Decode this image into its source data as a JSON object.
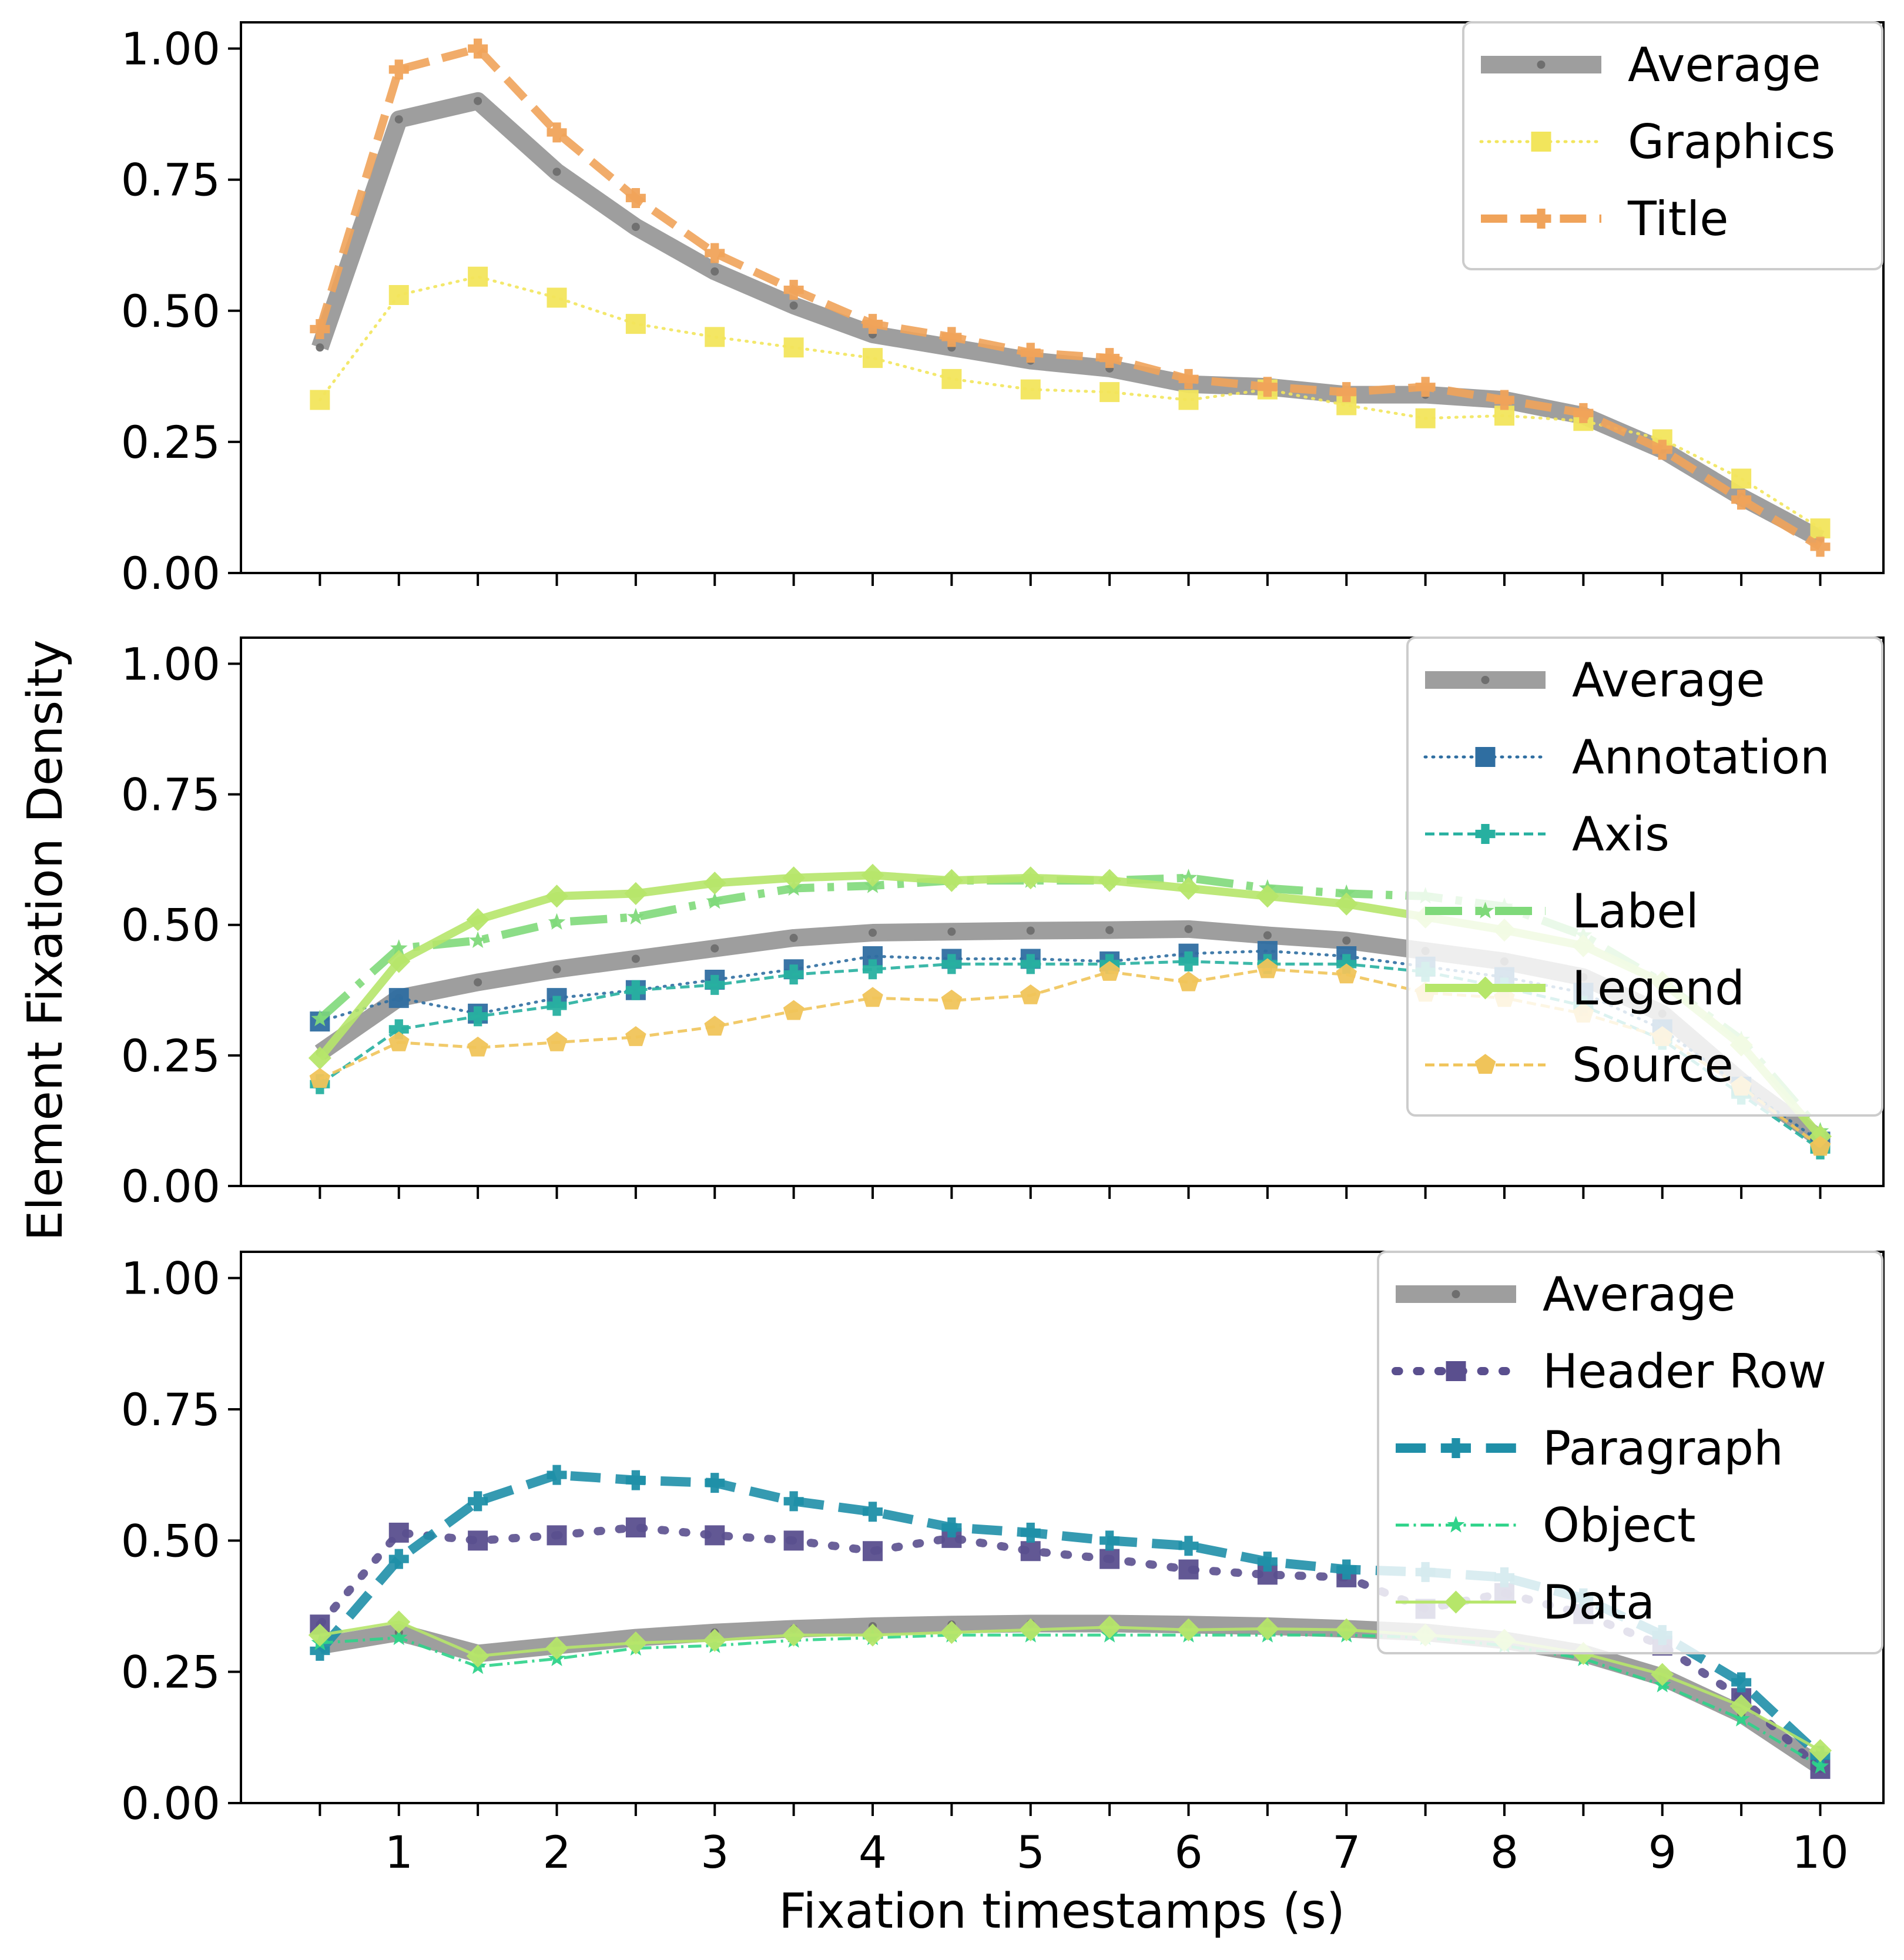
{
  "chart_data": {
    "type": "line",
    "ylabel": "Element Fixation Density",
    "xlabel": "Fixation timestamps (s)",
    "x": [
      0.5,
      1,
      1.5,
      2,
      2.5,
      3,
      3.5,
      4,
      4.5,
      5,
      5.5,
      6,
      6.5,
      7,
      7.5,
      8,
      8.5,
      9,
      9.5,
      10
    ],
    "xticks": [
      "1",
      "2",
      "3",
      "4",
      "5",
      "6",
      "7",
      "8",
      "9",
      "10"
    ],
    "ylim": [
      0,
      1.05
    ],
    "yticks": [
      "0.00",
      "0.25",
      "0.50",
      "0.75",
      "1.00"
    ],
    "legend_position": "top-right",
    "panels": [
      {
        "series": [
          {
            "name": "Average",
            "color": "#9e9e9e",
            "style": "solid",
            "marker": "circle",
            "width": "thick",
            "values": [
              0.43,
              0.865,
              0.9,
              0.765,
              0.66,
              0.575,
              0.51,
              0.455,
              0.43,
              0.405,
              0.39,
              0.36,
              0.355,
              0.34,
              0.34,
              0.33,
              0.3,
              0.235,
              0.145,
              0.065
            ]
          },
          {
            "name": "Graphics",
            "color": "#f2e55c",
            "style": "dotted",
            "marker": "square",
            "width": "thin",
            "values": [
              0.33,
              0.53,
              0.565,
              0.525,
              0.475,
              0.45,
              0.43,
              0.41,
              0.37,
              0.35,
              0.345,
              0.33,
              0.35,
              0.32,
              0.295,
              0.3,
              0.29,
              0.255,
              0.18,
              0.085
            ]
          },
          {
            "name": "Title",
            "color": "#f0a35a",
            "style": "dashed",
            "marker": "plus",
            "width": "medium",
            "values": [
              0.465,
              0.96,
              1.0,
              0.84,
              0.715,
              0.61,
              0.54,
              0.475,
              0.45,
              0.42,
              0.41,
              0.37,
              0.355,
              0.345,
              0.355,
              0.33,
              0.305,
              0.235,
              0.14,
              0.05
            ]
          }
        ]
      },
      {
        "series": [
          {
            "name": "Average",
            "color": "#9e9e9e",
            "style": "solid",
            "marker": "circle",
            "width": "thick",
            "values": [
              0.255,
              0.36,
              0.39,
              0.415,
              0.435,
              0.455,
              0.475,
              0.485,
              0.487,
              0.489,
              0.49,
              0.492,
              0.48,
              0.47,
              0.45,
              0.43,
              0.4,
              0.33,
              0.2,
              0.09
            ]
          },
          {
            "name": "Annotation",
            "color": "#2f6ea1",
            "style": "dotted",
            "marker": "square",
            "width": "thin",
            "values": [
              0.315,
              0.36,
              0.33,
              0.36,
              0.375,
              0.395,
              0.415,
              0.44,
              0.435,
              0.435,
              0.43,
              0.445,
              0.45,
              0.44,
              0.42,
              0.4,
              0.37,
              0.3,
              0.19,
              0.085
            ]
          },
          {
            "name": "Axis",
            "color": "#27b0a0",
            "style": "dashed",
            "marker": "plus",
            "width": "thin",
            "values": [
              0.195,
              0.3,
              0.325,
              0.345,
              0.375,
              0.385,
              0.405,
              0.415,
              0.425,
              0.425,
              0.425,
              0.43,
              0.425,
              0.425,
              0.41,
              0.38,
              0.345,
              0.28,
              0.175,
              0.07
            ]
          },
          {
            "name": "Label",
            "color": "#7fd97a",
            "style": "dashdot",
            "marker": "star",
            "width": "medium",
            "values": [
              0.32,
              0.455,
              0.47,
              0.505,
              0.515,
              0.545,
              0.57,
              0.575,
              0.585,
              0.585,
              0.585,
              0.59,
              0.57,
              0.56,
              0.555,
              0.535,
              0.48,
              0.39,
              0.28,
              0.105
            ]
          },
          {
            "name": "Legend",
            "color": "#b6e66a",
            "style": "solid",
            "marker": "diamond",
            "width": "medium",
            "values": [
              0.245,
              0.43,
              0.51,
              0.555,
              0.56,
              0.58,
              0.59,
              0.595,
              0.585,
              0.59,
              0.585,
              0.57,
              0.555,
              0.54,
              0.515,
              0.49,
              0.46,
              0.39,
              0.27,
              0.095
            ]
          },
          {
            "name": "Source",
            "color": "#f0c45a",
            "style": "dashed",
            "marker": "pentagon",
            "width": "thin",
            "values": [
              0.205,
              0.275,
              0.265,
              0.275,
              0.285,
              0.305,
              0.335,
              0.36,
              0.355,
              0.365,
              0.41,
              0.39,
              0.415,
              0.405,
              0.37,
              0.36,
              0.33,
              0.285,
              0.19,
              0.075
            ]
          }
        ]
      },
      {
        "series": [
          {
            "name": "Average",
            "color": "#9e9e9e",
            "style": "solid",
            "marker": "circle",
            "width": "thick",
            "values": [
              0.3,
              0.325,
              0.285,
              0.3,
              0.315,
              0.325,
              0.332,
              0.337,
              0.34,
              0.342,
              0.342,
              0.34,
              0.337,
              0.332,
              0.325,
              0.31,
              0.285,
              0.24,
              0.17,
              0.07
            ]
          },
          {
            "name": "Header Row",
            "color": "#5a4f8e",
            "style": "dotted",
            "marker": "square",
            "width": "medium",
            "values": [
              0.34,
              0.515,
              0.5,
              0.51,
              0.525,
              0.51,
              0.5,
              0.48,
              0.505,
              0.48,
              0.465,
              0.445,
              0.435,
              0.43,
              0.37,
              0.4,
              0.36,
              0.3,
              0.2,
              0.065
            ]
          },
          {
            "name": "Paragraph",
            "color": "#1f8fa8",
            "style": "dashed",
            "marker": "plus",
            "width": "thick-dashed",
            "values": [
              0.29,
              0.465,
              0.575,
              0.625,
              0.615,
              0.61,
              0.575,
              0.555,
              0.525,
              0.515,
              0.5,
              0.49,
              0.46,
              0.445,
              0.44,
              0.43,
              0.39,
              0.32,
              0.23,
              0.09
            ]
          },
          {
            "name": "Object",
            "color": "#2ed389",
            "style": "dashdot",
            "marker": "star",
            "width": "thin",
            "values": [
              0.305,
              0.315,
              0.26,
              0.275,
              0.295,
              0.3,
              0.31,
              0.315,
              0.32,
              0.32,
              0.32,
              0.32,
              0.32,
              0.32,
              0.315,
              0.3,
              0.275,
              0.225,
              0.16,
              0.07
            ]
          },
          {
            "name": "Data",
            "color": "#b6e66a",
            "style": "solid",
            "marker": "diamond",
            "width": "thin",
            "values": [
              0.32,
              0.345,
              0.28,
              0.295,
              0.305,
              0.31,
              0.32,
              0.32,
              0.325,
              0.33,
              0.335,
              0.33,
              0.332,
              0.33,
              0.32,
              0.31,
              0.285,
              0.245,
              0.185,
              0.1
            ]
          }
        ]
      }
    ]
  }
}
